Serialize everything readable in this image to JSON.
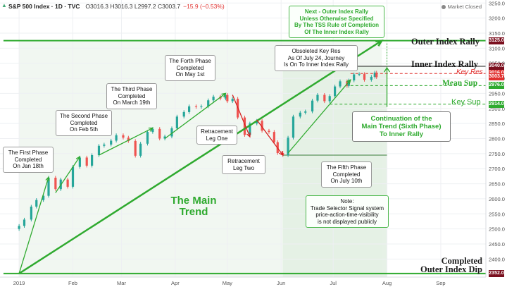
{
  "header": {
    "symbol": "S&P 500 Index · 1D · TVC",
    "ohlc": "O3016.3  H3016.3  L2997.2  C3003.7",
    "change": "−15.9 (−0.53%)",
    "status": "Market Closed",
    "status_icon": "clock-icon"
  },
  "annotations": {
    "next_outer": "Next - Outer Index Rally\nUnless Otherwise Specified\nBy The TSS Rule of Completion\nOf The Inner Index Rally",
    "obsoleted": "Obsoleted Key Res\nAs Of July 24, Journey\nIs On To Inner Index Rally",
    "forth_phase": "The Forth Phase\nCompleted\nOn May 1st",
    "third_phase": "The Third Phase\nCompleted\nOn March 19th",
    "second_phase": "The Second Phase\nCompleted\nOn Feb 5th",
    "first_phase": "The First Phase\nCompleted\nOn Jan 18th",
    "retracement_one": "Retracement\nLeg One",
    "retracement_two": "Retracement\nLeg Two",
    "fifth_phase": "The Fifth Phase\nCompleted\nOn July 10th",
    "note": "Note:\nTrade Selector Signal system\nprice-action-time-visibility\nis not displayed publicly",
    "main_trend": "The Main\nTrend",
    "continuation": "Continuation of the\nMain Trend (Sixth Phase)\nTo Inner Rally"
  },
  "levels": {
    "outer_rally": {
      "label": "Outer Index Rally",
      "value": 3125.0,
      "tag": "3125.0",
      "color": "#7a0f1e"
    },
    "inner_rally": {
      "label": "Inner Index Rally",
      "value": 3040.0,
      "tag": "3040.0",
      "color": "#7a0f1e"
    },
    "key_res": {
      "label": "Key Res",
      "value": 3016.0,
      "tag": "3016.0",
      "color": "#e0312f"
    },
    "last": {
      "value": 3003.7,
      "tag": "3003.7",
      "color": "#e0312f"
    },
    "mean_sup": {
      "label": "Mean Sup",
      "value": 2976.0,
      "tag": "2976.0",
      "color": "#2faa2f"
    },
    "key_sup": {
      "label": "Key Sup",
      "value": 2914.0,
      "tag": "2914.0",
      "color": "#2faa2f"
    },
    "outer_dip": {
      "label": "Completed\nOuter Index Dip",
      "value": 2352.0,
      "tag": "2352.0",
      "color": "#7a0f1e"
    }
  },
  "chart_data": {
    "type": "candlestick",
    "y_ticks": [
      2400,
      2450,
      2500,
      2550,
      2600,
      2650,
      2700,
      2750,
      2800,
      2850,
      2900,
      2950,
      3000,
      3050,
      3100,
      3150,
      3200,
      3250
    ],
    "ylim": [
      2340,
      3260
    ],
    "x_ticks": [
      "2019",
      "Feb",
      "Mar",
      "Apr",
      "May",
      "Jun",
      "Jul",
      "Aug",
      "Sep"
    ],
    "x_tick_days": [
      1,
      32,
      60,
      91,
      121,
      152,
      182,
      213,
      244
    ],
    "xlim_days": [
      -10,
      270
    ],
    "series": [
      {
        "day": 1,
        "close": 2510
      },
      {
        "day": 4,
        "close": 2531
      },
      {
        "day": 8,
        "close": 2574
      },
      {
        "day": 11,
        "close": 2596
      },
      {
        "day": 15,
        "close": 2610
      },
      {
        "day": 18,
        "close": 2670
      },
      {
        "day": 22,
        "close": 2632
      },
      {
        "day": 25,
        "close": 2664
      },
      {
        "day": 29,
        "close": 2640
      },
      {
        "day": 32,
        "close": 2706
      },
      {
        "day": 36,
        "close": 2737
      },
      {
        "day": 40,
        "close": 2710
      },
      {
        "day": 43,
        "close": 2745
      },
      {
        "day": 47,
        "close": 2776
      },
      {
        "day": 50,
        "close": 2780
      },
      {
        "day": 54,
        "close": 2793
      },
      {
        "day": 57,
        "close": 2811
      },
      {
        "day": 61,
        "close": 2803
      },
      {
        "day": 64,
        "close": 2792
      },
      {
        "day": 68,
        "close": 2743
      },
      {
        "day": 71,
        "close": 2783
      },
      {
        "day": 75,
        "close": 2822
      },
      {
        "day": 78,
        "close": 2832
      },
      {
        "day": 82,
        "close": 2800
      },
      {
        "day": 85,
        "close": 2807
      },
      {
        "day": 89,
        "close": 2834
      },
      {
        "day": 92,
        "close": 2873
      },
      {
        "day": 96,
        "close": 2888
      },
      {
        "day": 99,
        "close": 2907
      },
      {
        "day": 103,
        "close": 2905
      },
      {
        "day": 106,
        "close": 2907
      },
      {
        "day": 110,
        "close": 2927
      },
      {
        "day": 113,
        "close": 2939
      },
      {
        "day": 117,
        "close": 2933
      },
      {
        "day": 120,
        "close": 2945
      },
      {
        "day": 121,
        "close": 2924
      },
      {
        "day": 124,
        "close": 2932
      },
      {
        "day": 127,
        "close": 2870
      },
      {
        "day": 131,
        "close": 2812
      },
      {
        "day": 134,
        "close": 2850
      },
      {
        "day": 138,
        "close": 2859
      },
      {
        "day": 141,
        "close": 2826
      },
      {
        "day": 145,
        "close": 2822
      },
      {
        "day": 148,
        "close": 2788
      },
      {
        "day": 150,
        "close": 2752
      },
      {
        "day": 153,
        "close": 2745
      },
      {
        "day": 156,
        "close": 2803
      },
      {
        "day": 159,
        "close": 2873
      },
      {
        "day": 163,
        "close": 2886
      },
      {
        "day": 166,
        "close": 2890
      },
      {
        "day": 170,
        "close": 2926
      },
      {
        "day": 173,
        "close": 2945
      },
      {
        "day": 177,
        "close": 2924
      },
      {
        "day": 180,
        "close": 2941
      },
      {
        "day": 183,
        "close": 2973
      },
      {
        "day": 186,
        "close": 2990
      },
      {
        "day": 190,
        "close": 2975
      },
      {
        "day": 191,
        "close": 2993
      },
      {
        "day": 194,
        "close": 3013
      },
      {
        "day": 197,
        "close": 3014
      },
      {
        "day": 200,
        "close": 2995
      },
      {
        "day": 204,
        "close": 3005
      },
      {
        "day": 206,
        "close": 3019
      },
      {
        "day": 207,
        "close": 3003.7
      }
    ],
    "trend_lines": [
      {
        "name": "main-trend",
        "from": [
          1,
          2352
        ],
        "to": [
          210,
          3125
        ]
      },
      {
        "name": "phase-1",
        "from": [
          1,
          2352
        ],
        "to": [
          18,
          2672
        ]
      },
      {
        "name": "phase-2",
        "from": [
          22,
          2620
        ],
        "to": [
          36,
          2740
        ]
      },
      {
        "name": "phase-3",
        "from": [
          47,
          2745
        ],
        "to": [
          78,
          2835
        ]
      },
      {
        "name": "phase-4",
        "from": [
          85,
          2800
        ],
        "to": [
          120,
          2950
        ]
      },
      {
        "name": "phase-5",
        "from": [
          156,
          2752
        ],
        "to": [
          192,
          2995
        ]
      },
      {
        "name": "retracement-1",
        "from": [
          124,
          2945
        ],
        "to": [
          134,
          2806
        ]
      },
      {
        "name": "retracement-2",
        "from": [
          138,
          2862
        ],
        "to": [
          153,
          2745
        ]
      }
    ],
    "support_lines": [
      {
        "name": "fifth-phase-base",
        "value": 2745,
        "from": 153,
        "to": 213
      }
    ]
  }
}
